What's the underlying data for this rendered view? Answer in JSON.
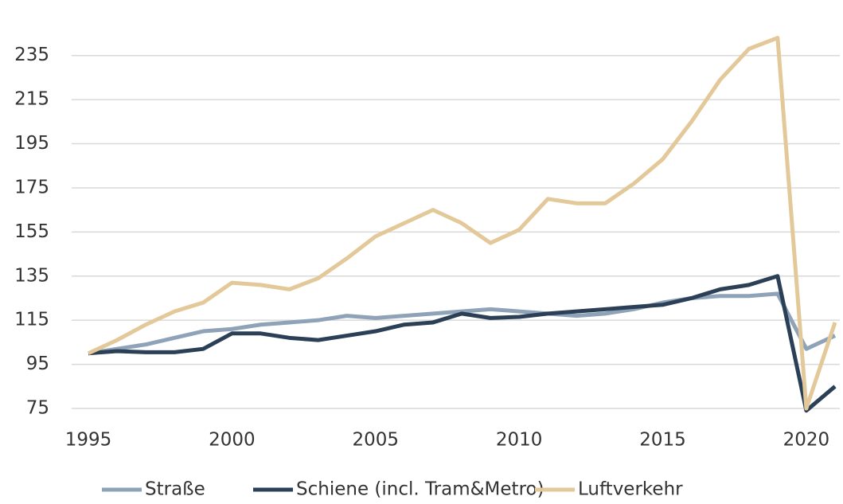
{
  "chart_data": {
    "type": "line",
    "x": [
      1995,
      1996,
      1997,
      1998,
      1999,
      2000,
      2001,
      2002,
      2003,
      2004,
      2005,
      2006,
      2007,
      2008,
      2009,
      2010,
      2011,
      2012,
      2013,
      2014,
      2015,
      2016,
      2017,
      2018,
      2019,
      2020,
      2021
    ],
    "series": [
      {
        "name": "Straße",
        "color": "#8fa3b8",
        "values": [
          100,
          102,
          104,
          107,
          110,
          111,
          113,
          114,
          115,
          117,
          116,
          117,
          118,
          119,
          120,
          119,
          118,
          117,
          118,
          120,
          123,
          125,
          126,
          126,
          127,
          102,
          108
        ]
      },
      {
        "name": "Schiene (incl. Tram&Metro)",
        "color": "#2b3f57",
        "values": [
          100,
          101,
          100.5,
          100.5,
          102,
          109,
          109,
          107,
          106,
          108,
          110,
          113,
          114,
          118,
          116,
          116.5,
          118,
          119,
          120,
          121,
          122,
          125,
          129,
          131,
          135,
          74,
          85
        ]
      },
      {
        "name": "Luftverkehr",
        "color": "#e3c99a",
        "values": [
          100,
          106,
          113,
          119,
          123,
          132,
          131,
          129,
          134,
          143,
          153,
          159,
          165,
          159,
          150,
          156,
          170,
          168,
          168,
          177,
          188,
          205,
          224,
          238,
          243,
          75,
          114
        ]
      }
    ],
    "xlim": [
      1995,
      2021
    ],
    "xticks": [
      1995,
      2000,
      2005,
      2010,
      2015,
      2020
    ],
    "ylim": [
      75,
      245
    ],
    "yticks": [
      75,
      95,
      115,
      135,
      155,
      175,
      195,
      215,
      235
    ],
    "grid": true,
    "legend": "bottom"
  }
}
